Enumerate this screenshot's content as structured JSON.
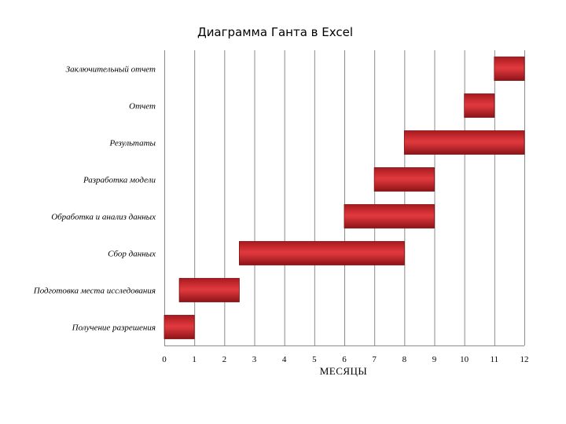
{
  "chart_data": {
    "type": "bar",
    "title": "Диаграмма Ганта в Excel",
    "xlabel": "МЕСЯЦЫ",
    "ylabel": "",
    "xlim": [
      0,
      12
    ],
    "x_ticks": [
      "0",
      "1",
      "2",
      "3",
      "4",
      "5",
      "6",
      "7",
      "8",
      "9",
      "10",
      "11",
      "12"
    ],
    "grid": true,
    "orientation": "horizontal",
    "stacked_offset": true,
    "bar_color": "#c8262b",
    "categories": [
      "Заключительный отчет",
      "Отчет",
      "Результаты",
      "Разработка модели",
      "Обработка и анализ данных",
      "Сбор данных",
      "Подготовка места исследования",
      "Получение разрешения"
    ],
    "series": [
      {
        "start": 11,
        "end": 12
      },
      {
        "start": 10,
        "end": 11
      },
      {
        "start": 8,
        "end": 12
      },
      {
        "start": 7,
        "end": 9
      },
      {
        "start": 6,
        "end": 9
      },
      {
        "start": 2.5,
        "end": 8
      },
      {
        "start": 0.5,
        "end": 2.5
      },
      {
        "start": 0,
        "end": 1
      }
    ]
  }
}
